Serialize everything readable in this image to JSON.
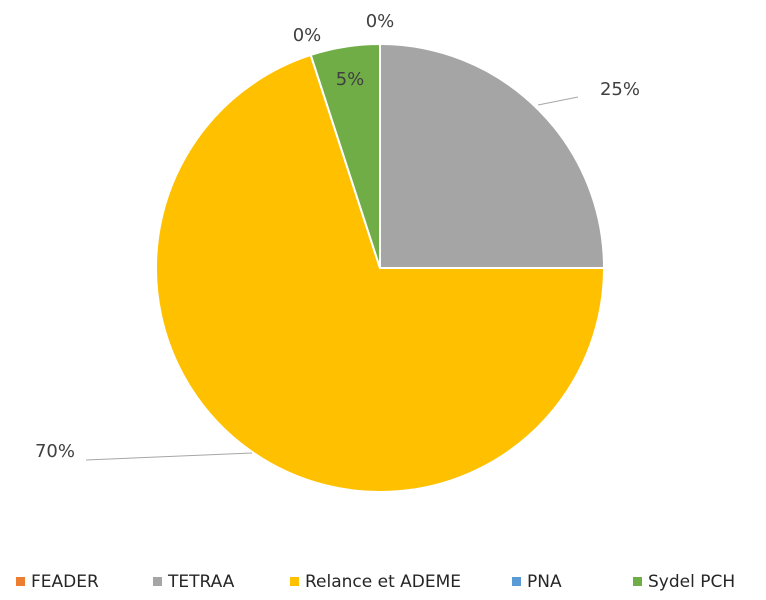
{
  "chart_data": {
    "type": "pie",
    "categories": [
      "FEADER",
      "TETRAA",
      "Relance et ADEME",
      "PNA",
      "Sydel PCH"
    ],
    "values": [
      0,
      25,
      70,
      0,
      5
    ],
    "value_labels": [
      "0%",
      "25%",
      "70%",
      "0%",
      "5%"
    ],
    "colors": [
      "#ed7d31",
      "#a5a5a5",
      "#ffc000",
      "#5b9bd5",
      "#70ad47"
    ],
    "legend": "bottom"
  }
}
